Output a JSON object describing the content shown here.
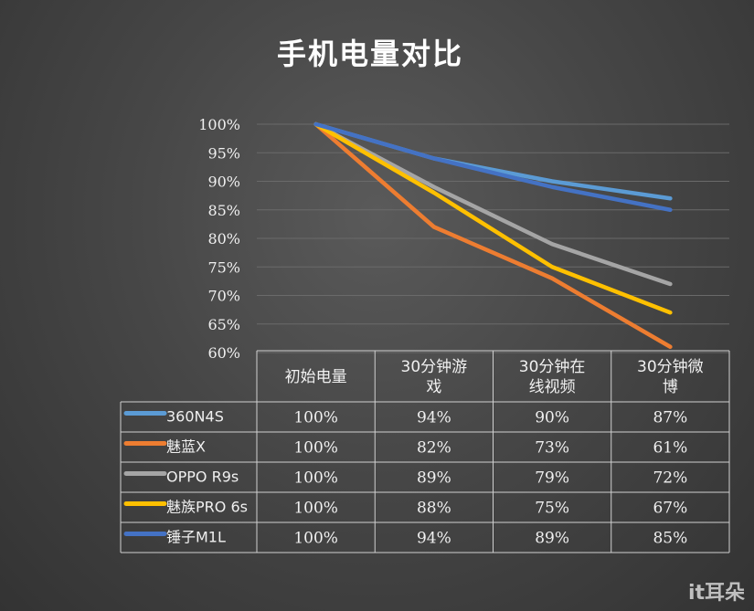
{
  "chart_data": {
    "type": "line",
    "title": "手机电量对比",
    "categories": [
      "初始电量",
      "30分钟游戏",
      "30分钟在线视频",
      "30分钟微博"
    ],
    "category_lines": [
      [
        "初始电量"
      ],
      [
        "30分钟游",
        "戏"
      ],
      [
        "30分钟在",
        "线视频"
      ],
      [
        "30分钟微",
        "博"
      ]
    ],
    "y_ticks": [
      "100%",
      "95%",
      "90%",
      "85%",
      "80%",
      "75%",
      "70%",
      "65%",
      "60%"
    ],
    "ylim": [
      60,
      100
    ],
    "grid": true,
    "legend": "data-table",
    "series": [
      {
        "name": "360N4S",
        "color": "#5b9bd5",
        "values": [
          100,
          94,
          90,
          87
        ],
        "labels": [
          "100%",
          "94%",
          "90%",
          "87%"
        ]
      },
      {
        "name": "魅蓝X",
        "color": "#ed7d31",
        "values": [
          100,
          82,
          73,
          61
        ],
        "labels": [
          "100%",
          "82%",
          "73%",
          "61%"
        ]
      },
      {
        "name": "OPPO R9s",
        "color": "#a5a5a5",
        "values": [
          100,
          89,
          79,
          72
        ],
        "labels": [
          "100%",
          "89%",
          "79%",
          "72%"
        ]
      },
      {
        "name": "魅族PRO 6s",
        "color": "#ffc000",
        "values": [
          100,
          88,
          75,
          67
        ],
        "labels": [
          "100%",
          "88%",
          "75%",
          "67%"
        ]
      },
      {
        "name": "锤子M1L",
        "color": "#4472c4",
        "values": [
          100,
          94,
          89,
          85
        ],
        "labels": [
          "100%",
          "94%",
          "89%",
          "85%"
        ]
      }
    ]
  },
  "watermark": "it耳朵"
}
